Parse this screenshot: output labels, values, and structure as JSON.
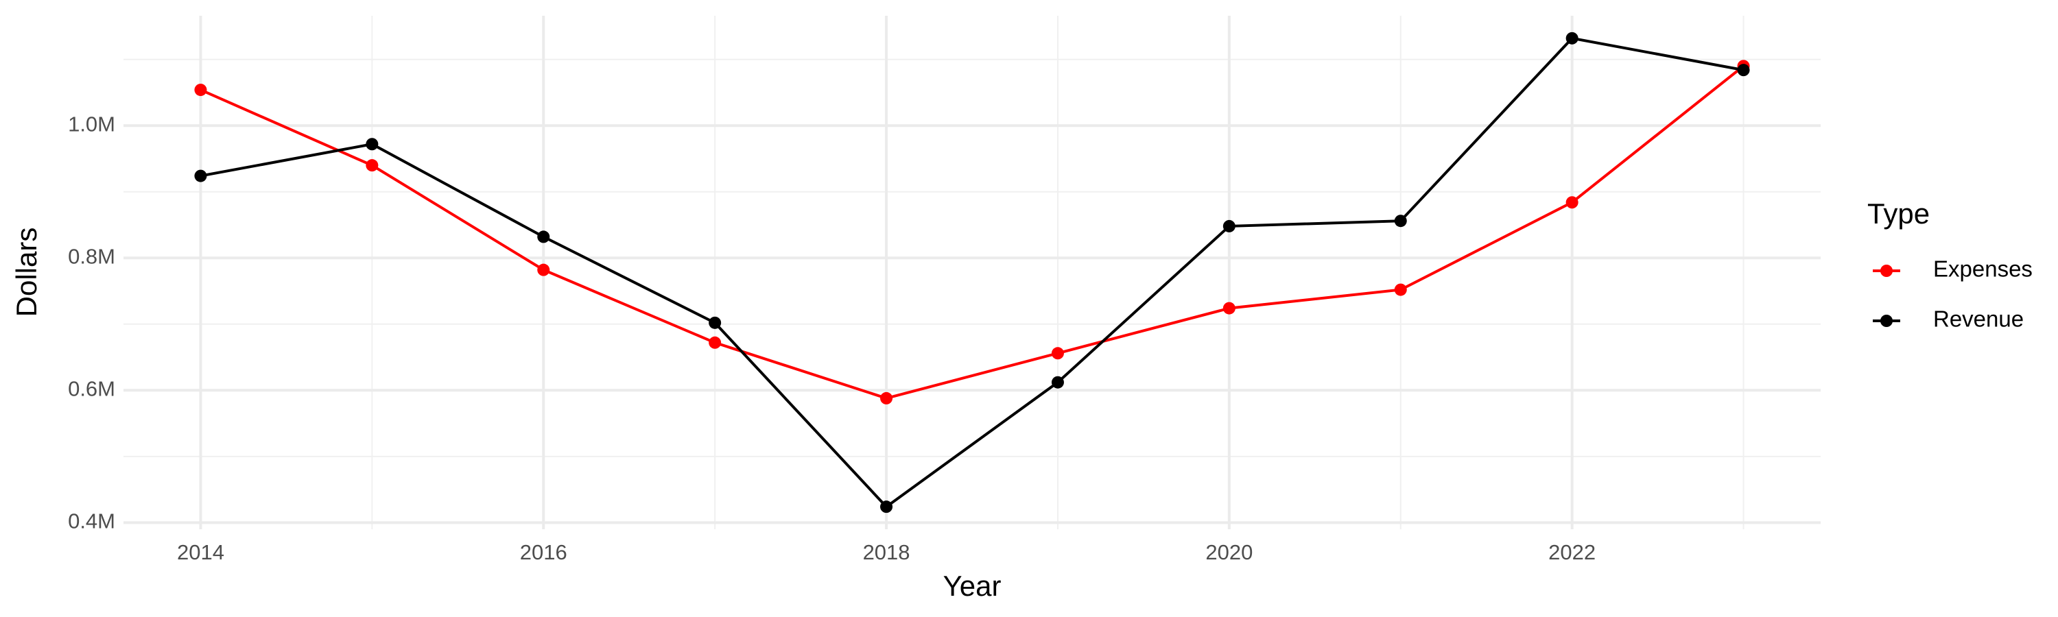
{
  "chart_data": {
    "type": "line",
    "x_label": "Year",
    "y_label": "Dollars",
    "legend_title": "Type",
    "legend_position": "right",
    "grid": true,
    "x": [
      2014,
      2015,
      2016,
      2017,
      2018,
      2019,
      2020,
      2021,
      2022,
      2023
    ],
    "series": [
      {
        "name": "Expenses",
        "color": "#ff0000",
        "values": [
          1054000,
          940000,
          782000,
          672000,
          588000,
          656000,
          724000,
          752000,
          884000,
          1090000
        ]
      },
      {
        "name": "Revenue",
        "color": "#000000",
        "values": [
          924000,
          972000,
          832000,
          702000,
          424000,
          612000,
          848000,
          856000,
          1132000,
          1084000
        ]
      }
    ],
    "xlim": [
      2013.55,
      2023.45
    ],
    "xticks": [
      2014,
      2016,
      2018,
      2020,
      2022
    ],
    "ylim": [
      390000,
      1166000
    ],
    "yticks": [
      {
        "value": 400000,
        "label": "0.4M"
      },
      {
        "value": 600000,
        "label": "0.6M"
      },
      {
        "value": 800000,
        "label": "0.8M"
      },
      {
        "value": 1000000,
        "label": "1.0M"
      }
    ]
  }
}
